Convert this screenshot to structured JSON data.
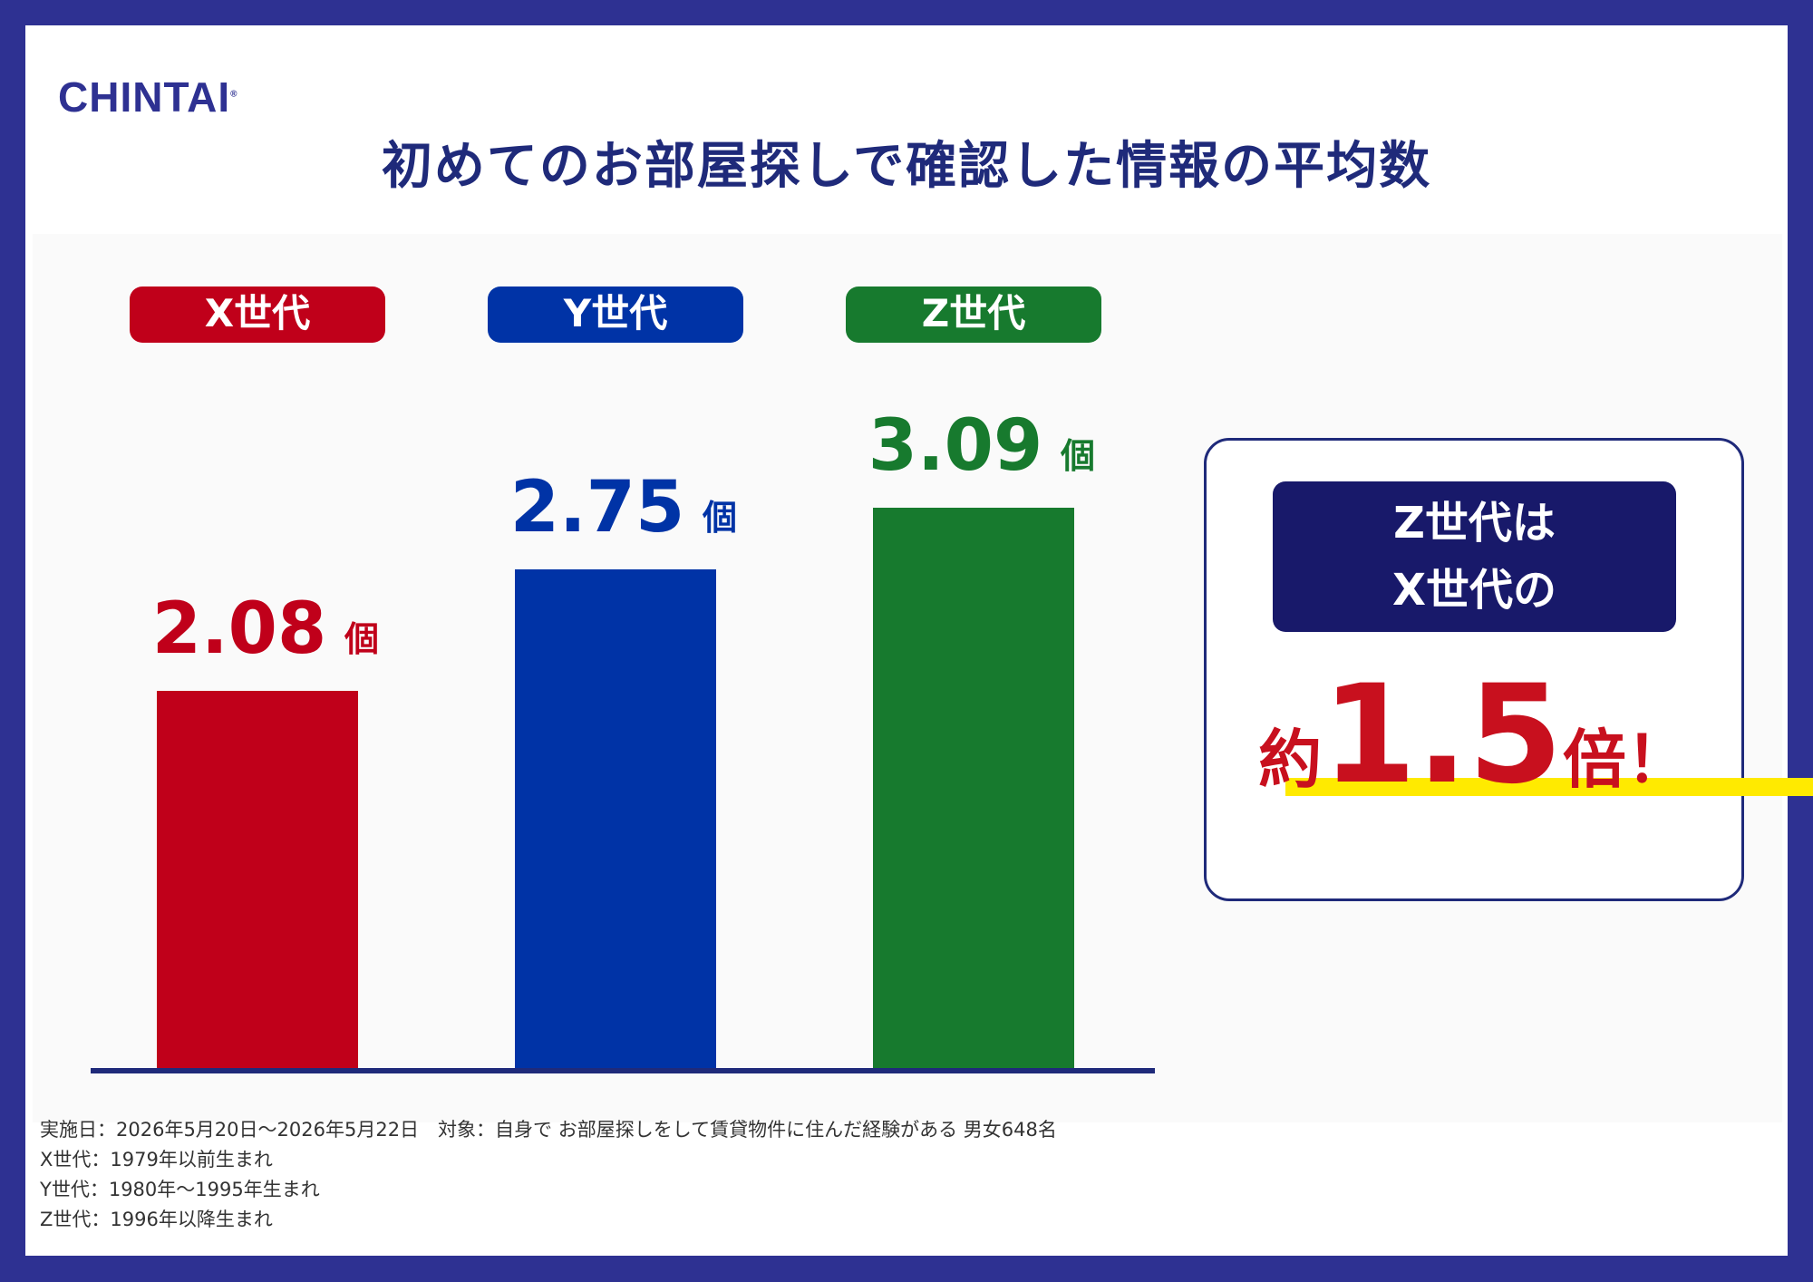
{
  "logo": "CHINTAI",
  "logo_mark": "®",
  "title": "初めてのお部屋探しで確認した情報の平均数",
  "chart_data": {
    "type": "bar",
    "title": "初めてのお部屋探しで確認した情報の平均数",
    "categories": [
      "X世代",
      "Y世代",
      "Z世代"
    ],
    "values": [
      2.08,
      2.75,
      3.09
    ],
    "unit": "個",
    "value_labels": [
      "2.08",
      "2.75",
      "3.09"
    ],
    "colors": [
      "#c0001a",
      "#0033a6",
      "#177a2e"
    ],
    "ylim": [
      0,
      4.25
    ],
    "grid": false,
    "legend": "none"
  },
  "callout": {
    "line1": "Z世代は",
    "line2": "X世代の",
    "prefix": "約",
    "value": "1.5",
    "suffix": "倍！"
  },
  "notes": [
    "実施日：2026年5月20日〜2026年5月22日　対象：自身で お部屋探しをして賃貸物件に住んだ経験がある 男女648名",
    "X世代：1979年以前生まれ",
    "Y世代：1980年〜1995年生まれ",
    "Z世代：1996年以降生まれ"
  ],
  "theme": {
    "navy": "#2e3192",
    "dark_navy": "#18196a",
    "highlight": "#ffea00"
  }
}
